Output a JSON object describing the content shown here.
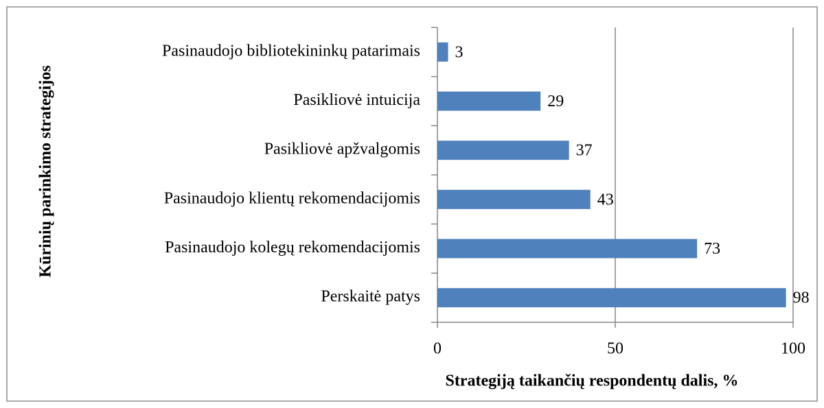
{
  "chart_data": {
    "type": "bar",
    "orientation": "horizontal",
    "xlabel": "Strategiją taikančių respondentų dalis, %",
    "ylabel": "Kūrinių  parinkimo  strategijos",
    "categories": [
      "Pasinaudojo bibliotekininkų patarimais",
      "Pasikliovė intuicija",
      "Pasikliovė apžvalgomis",
      "Pasinaudojo klientų rekomendacijomis",
      "Pasinaudojo kolegų rekomendacijomis",
      "Perskaitė patys"
    ],
    "values": [
      3,
      29,
      37,
      43,
      73,
      98
    ],
    "color": "#4f81bd",
    "xlim": [
      0,
      100
    ],
    "xticks": [
      0,
      50,
      100
    ],
    "grid": true
  }
}
